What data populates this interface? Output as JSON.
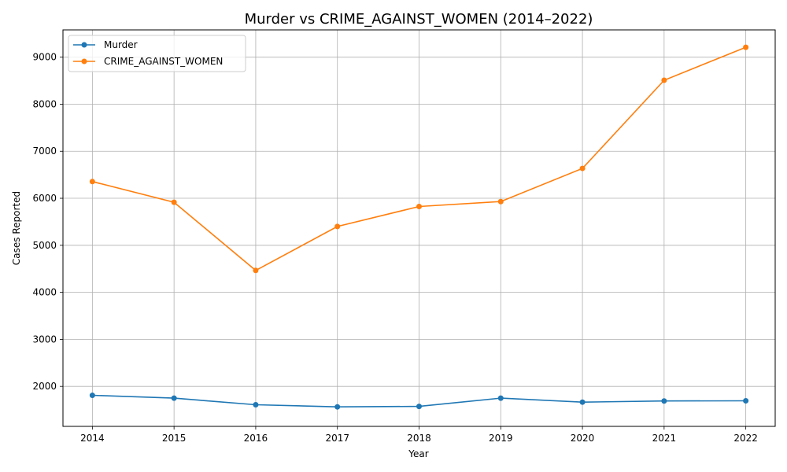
{
  "chart_data": {
    "type": "line",
    "title": "Murder vs CRIME_AGAINST_WOMEN (2014–2022)",
    "xlabel": "Year",
    "ylabel": "Cases Reported",
    "x": [
      2014,
      2015,
      2016,
      2017,
      2018,
      2019,
      2020,
      2021,
      2022
    ],
    "ylim": [
      1150,
      9580
    ],
    "yticks": [
      2000,
      3000,
      4000,
      5000,
      6000,
      7000,
      8000,
      9000
    ],
    "grid": true,
    "legend_position": "top-left",
    "series": [
      {
        "name": "Murder",
        "color": "#1f77b4",
        "values": [
          1810,
          1750,
          1610,
          1565,
          1575,
          1750,
          1665,
          1690,
          1693
        ]
      },
      {
        "name": "CRIME_AGAINST_WOMEN",
        "color": "#ff7f0e",
        "values": [
          6355,
          5915,
          4465,
          5400,
          5825,
          5930,
          6635,
          8510,
          9210
        ]
      }
    ]
  }
}
